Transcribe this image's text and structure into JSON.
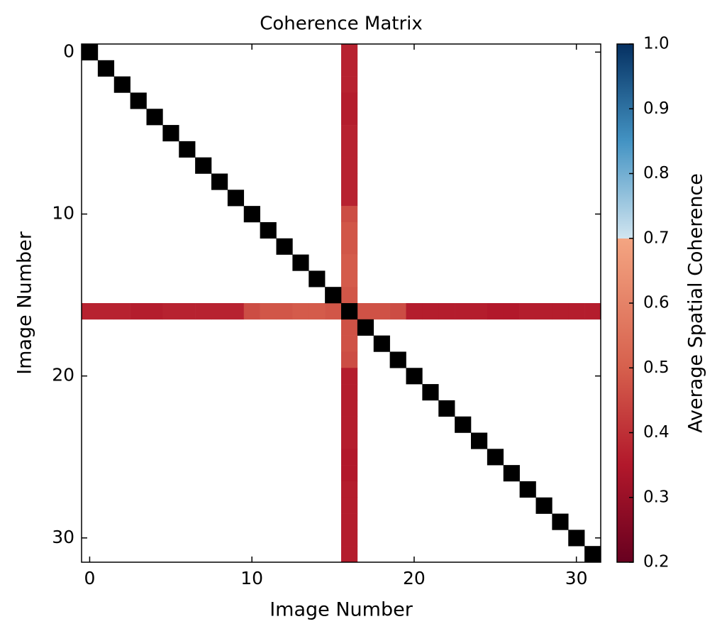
{
  "chart_data": {
    "type": "heatmap",
    "title": "Coherence Matrix",
    "x_label": "Image Number",
    "y_label": "Image Number",
    "xlim": [
      -0.5,
      31.5
    ],
    "ylim": [
      31.5,
      -0.5
    ],
    "xticks": [
      0,
      10,
      20,
      30
    ],
    "yticks": [
      0,
      10,
      20,
      30
    ],
    "cross_index": 16,
    "cross_values": [
      0.37,
      0.37,
      0.37,
      0.36,
      0.36,
      0.37,
      0.37,
      0.37,
      0.37,
      0.37,
      0.46,
      0.48,
      0.48,
      0.49,
      0.49,
      0.48,
      null,
      0.47,
      0.47,
      0.46,
      0.36,
      0.36,
      0.36,
      0.36,
      0.36,
      0.35,
      0.35,
      0.36,
      0.36,
      0.36,
      0.36,
      0.36
    ],
    "diagonal_color": "#000000",
    "colorbar": {
      "label": "Average Spatial Coherence",
      "lim": [
        0.2,
        1.0
      ],
      "ticks": [
        0.2,
        0.3,
        0.4,
        0.5,
        0.6,
        0.7,
        0.8,
        0.9,
        {
          "value": 1,
          "label": "1.0"
        }
      ],
      "stops": [
        {
          "value": 0.2,
          "color": "#67001f"
        },
        {
          "value": 0.35,
          "color": "#b2182b"
        },
        {
          "value": 0.5,
          "color": "#d6604d"
        },
        {
          "value": 0.7,
          "color": "#f4a582"
        },
        {
          "value": 0.7,
          "color": "#d1e5f0"
        },
        {
          "value": 0.85,
          "color": "#4393c3"
        },
        {
          "value": 1,
          "color": "#053061"
        }
      ]
    }
  }
}
